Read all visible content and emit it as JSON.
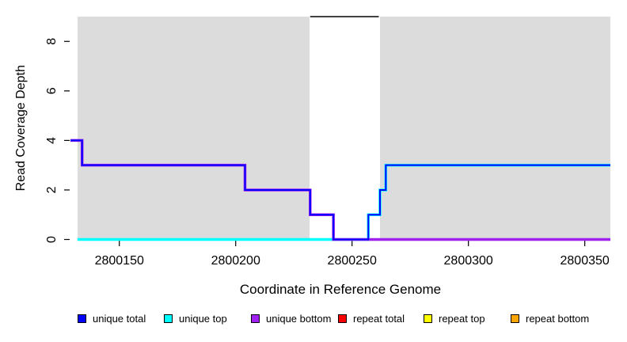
{
  "chart_data": {
    "type": "line",
    "subtype": "step",
    "title": "",
    "xlabel": "Coordinate in Reference Genome",
    "ylabel": "Read Coverage Depth",
    "xlim": [
      2800129,
      2800361
    ],
    "ylim": [
      0,
      9
    ],
    "x_ticks": [
      2800150,
      2800200,
      2800250,
      2800300,
      2800350
    ],
    "y_ticks": [
      0,
      2,
      4,
      6,
      8
    ],
    "grid": false,
    "legend_position": "bottom",
    "background_color": "#ffffff",
    "shaded_regions": [
      {
        "name": "unique-region-left",
        "x0": 2800132,
        "x1": 2800231.7,
        "color": "#DCDCDC"
      },
      {
        "name": "unique-region-right",
        "x0": 2800262,
        "x1": 2800361,
        "color": "#DCDCDC"
      }
    ],
    "series": [
      {
        "name": "unique top",
        "color": "#00FFFF",
        "width": 3.5,
        "end_x": 2800361,
        "step_points": [
          [
            2800132,
            0
          ],
          [
            2800257,
            1
          ],
          [
            2800262,
            2
          ],
          [
            2800264.5,
            3
          ]
        ]
      },
      {
        "name": "unique bottom",
        "color": "#A020F0",
        "width": 3.5,
        "end_x": 2800361,
        "step_points": [
          [
            2800129,
            4
          ],
          [
            2800134,
            3
          ],
          [
            2800204,
            2
          ],
          [
            2800232,
            1
          ],
          [
            2800242,
            0
          ]
        ]
      },
      {
        "name": "unique total",
        "color": "#0000FF",
        "width": 2,
        "end_x": 2800361,
        "step_points": [
          [
            2800129,
            4
          ],
          [
            2800134,
            3
          ],
          [
            2800204,
            2
          ],
          [
            2800232,
            1
          ],
          [
            2800242,
            0
          ],
          [
            2800257,
            1
          ],
          [
            2800262,
            2
          ],
          [
            2800264.5,
            3
          ]
        ]
      },
      {
        "name": "repeat region cap",
        "color": "#000000",
        "width": 1.5,
        "end_x": 2800261.5,
        "step_points": [
          [
            2800232,
            9
          ]
        ]
      }
    ]
  },
  "legend": {
    "items": [
      {
        "label": "unique total",
        "color": "#0000FF"
      },
      {
        "label": "unique top",
        "color": "#00FFFF"
      },
      {
        "label": "unique bottom",
        "color": "#A020F0"
      },
      {
        "label": "repeat total",
        "color": "#FF0000"
      },
      {
        "label": "repeat top",
        "color": "#FFFF00"
      },
      {
        "label": "repeat bottom",
        "color": "#FFA500"
      }
    ]
  }
}
